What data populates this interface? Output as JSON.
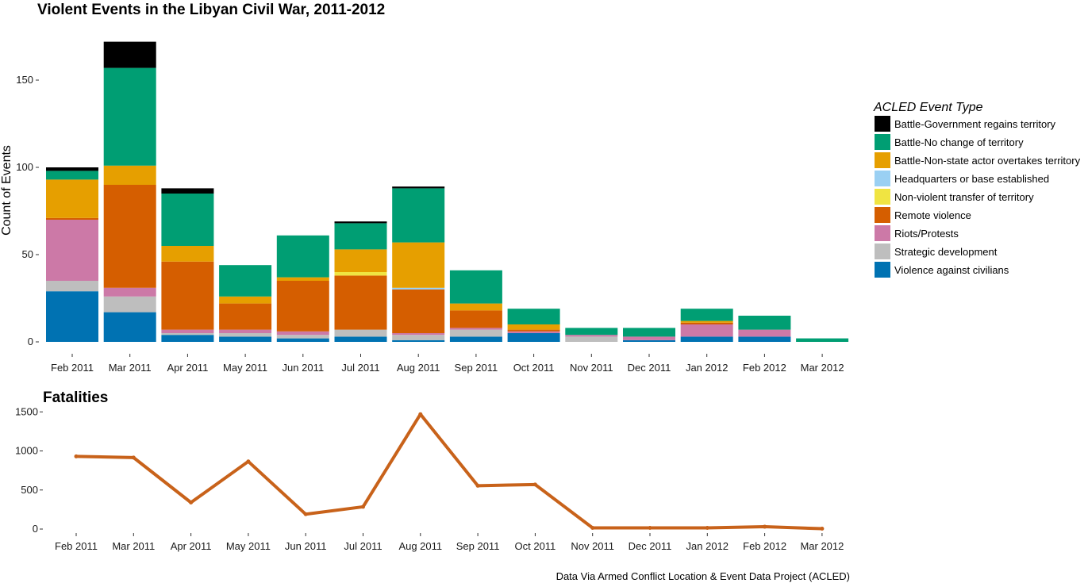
{
  "chart_data": [
    {
      "type": "bar",
      "stacked": true,
      "title": "Violent Events in the Libyan Civil War, 2011-2012",
      "xlabel": "",
      "ylabel": "Count of Events",
      "ylim": [
        0,
        175
      ],
      "yticks": [
        0,
        50,
        100,
        150
      ],
      "grid": false,
      "legend_position": "right",
      "legend_title": "ACLED Event Type",
      "categories": [
        "Feb 2011",
        "Mar 2011",
        "Apr 2011",
        "May 2011",
        "Jun 2011",
        "Jul 2011",
        "Aug 2011",
        "Sep 2011",
        "Oct 2011",
        "Nov 2011",
        "Dec 2011",
        "Jan 2012",
        "Feb 2012",
        "Mar 2012"
      ],
      "series": [
        {
          "name": "Violence against civilians",
          "color": "#0072B2",
          "values": [
            29,
            17,
            4,
            3,
            2,
            3,
            1,
            3,
            5,
            0,
            1,
            3,
            3,
            0
          ]
        },
        {
          "name": "Strategic development",
          "color": "#BEBEBE",
          "values": [
            6,
            9,
            1,
            2,
            2,
            4,
            3,
            4,
            0,
            3,
            0,
            0,
            0,
            0
          ]
        },
        {
          "name": "Riots/Protests",
          "color": "#CC79A7",
          "values": [
            35,
            5,
            2,
            2,
            2,
            0,
            1,
            1,
            1,
            1,
            2,
            7,
            4,
            0
          ]
        },
        {
          "name": "Remote violence",
          "color": "#D55E00",
          "values": [
            1,
            59,
            39,
            15,
            29,
            31,
            25,
            10,
            1,
            0,
            0,
            1,
            0,
            0
          ]
        },
        {
          "name": "Non-violent transfer of territory",
          "color": "#F0E442",
          "values": [
            0,
            0,
            0,
            0,
            0,
            2,
            0,
            0,
            0,
            0,
            0,
            0,
            0,
            0
          ]
        },
        {
          "name": "Headquarters or base established",
          "color": "#9AD0F3",
          "values": [
            0,
            0,
            0,
            0,
            0,
            0,
            1,
            0,
            0,
            0,
            0,
            0,
            0,
            0
          ]
        },
        {
          "name": "Battle-Non-state actor overtakes territory",
          "color": "#E69F00",
          "values": [
            22,
            11,
            9,
            4,
            2,
            13,
            26,
            4,
            3,
            0,
            0,
            1,
            0,
            0
          ]
        },
        {
          "name": "Battle-No change of territory",
          "color": "#009E73",
          "values": [
            5,
            56,
            30,
            18,
            24,
            15,
            31,
            19,
            9,
            4,
            5,
            7,
            8,
            2
          ]
        },
        {
          "name": "Battle-Government regains territory",
          "color": "#000000",
          "values": [
            2,
            15,
            3,
            0,
            0,
            1,
            1,
            0,
            0,
            0,
            0,
            0,
            0,
            0
          ]
        }
      ]
    },
    {
      "type": "line",
      "title": "Fatalities",
      "xlabel": "",
      "ylabel": "",
      "ylim": [
        0,
        1500
      ],
      "yticks": [
        0,
        500,
        1000,
        1500
      ],
      "grid": false,
      "color": "#C8621A",
      "categories": [
        "Feb 2011",
        "Mar 2011",
        "Apr 2011",
        "May 2011",
        "Jun 2011",
        "Jul 2011",
        "Aug 2011",
        "Sep 2011",
        "Oct 2011",
        "Nov 2011",
        "Dec 2011",
        "Jan 2012",
        "Feb 2012",
        "Mar 2012"
      ],
      "values": [
        930,
        915,
        340,
        865,
        190,
        285,
        1470,
        555,
        570,
        15,
        15,
        15,
        30,
        5
      ]
    }
  ],
  "caption": "Data Via Armed Conflict Location & Event Data Project (ACLED)"
}
